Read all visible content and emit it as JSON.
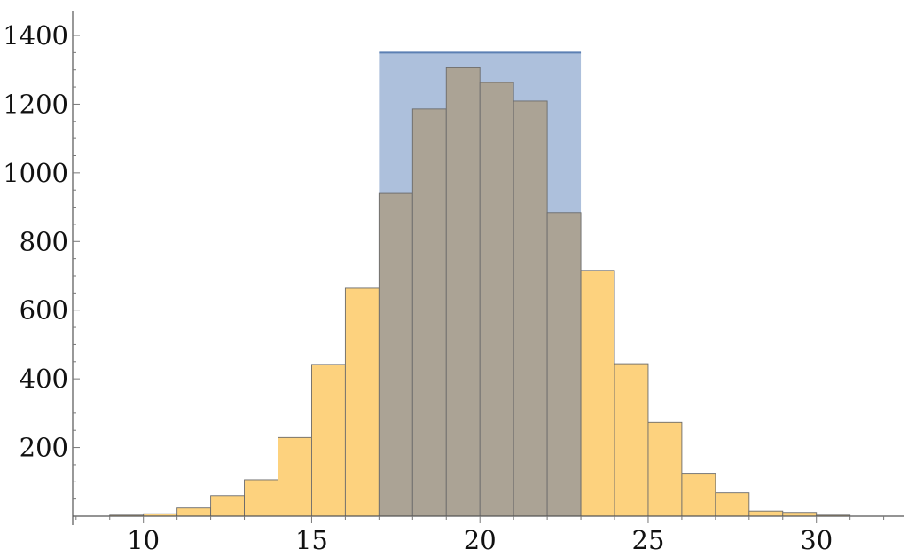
{
  "chart_data": {
    "type": "bar",
    "title": "",
    "xlabel": "",
    "ylabel": "",
    "xlim": [
      7.9,
      32.3
    ],
    "ylim": [
      0,
      1400
    ],
    "x_ticks": [
      10,
      15,
      20,
      25,
      30
    ],
    "y_ticks": [
      200,
      400,
      600,
      800,
      1000,
      1200,
      1400
    ],
    "bin_width": 1,
    "highlight_region": {
      "x_start": 17,
      "x_end": 23,
      "top": 1350,
      "color": "#adc0dc",
      "edge_color": "#5b7fb3"
    },
    "series": [
      {
        "bins": [
          9,
          10,
          11,
          12,
          13,
          14,
          15,
          16,
          17,
          18,
          19,
          20,
          21,
          22,
          23,
          24,
          25,
          26,
          27,
          28,
          29,
          30
        ],
        "values": [
          3,
          7,
          24,
          60,
          106,
          229,
          442,
          664,
          940,
          1186,
          1306,
          1263,
          1209,
          884,
          716,
          444,
          273,
          125,
          68,
          15,
          11,
          3
        ],
        "color": "#fdd27e",
        "overlap_color": "#aba395"
      }
    ],
    "grid": false,
    "legend": "none"
  }
}
